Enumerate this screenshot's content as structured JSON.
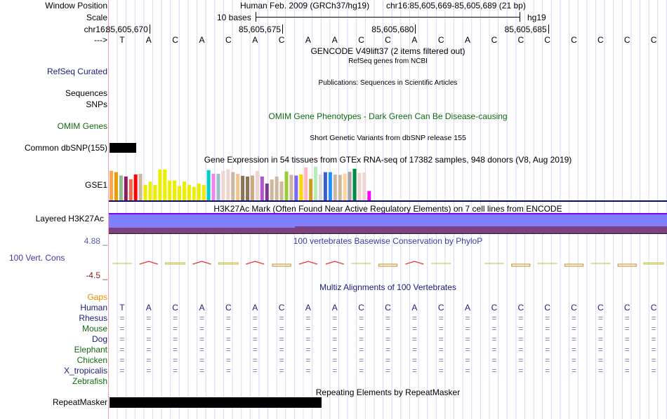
{
  "header": {
    "window_position_label": "Window Position",
    "assembly": "Human Feb. 2009 (GRCh37/hg19)",
    "position": "chr16:85,605,669-85,605,689 (21 bp)",
    "scale_label": "Scale",
    "scale_text": "10 bases",
    "scale_db": "hg19",
    "chrom_label": "chr16:",
    "coordinates": [
      "85,605,670",
      "85,605,675",
      "85,605,680",
      "85,605,685"
    ],
    "strand_label": "--->"
  },
  "sequence": [
    "T",
    "A",
    "C",
    "A",
    "C",
    "A",
    "C",
    "A",
    "A",
    "C",
    "C",
    "A",
    "C",
    "A",
    "C",
    "C",
    "C",
    "C",
    "C",
    "C",
    "C"
  ],
  "tracks": {
    "gencode": {
      "title": "GENCODE V49lift37 (2 items filtered out)"
    },
    "refseq": {
      "label": "RefSeq Curated",
      "title": "RefSeq genes from NCBI",
      "color": "#1c1c7c"
    },
    "publications": {
      "label": "Sequences",
      "title": "Publications: Sequences in Scientific Articles"
    },
    "snps_pub": {
      "label": "SNPs"
    },
    "omim": {
      "label": "OMIM Genes",
      "title": "OMIM Gene Phenotypes - Dark Green Can Be Disease-causing",
      "color": "#116a11"
    },
    "dbsnp": {
      "label": "Common dbSNP(155)",
      "title": "Short Genetic Variants from dbSNP release 155"
    },
    "gtex": {
      "label": "GSE1",
      "title": "Gene Expression in 54 tissues from GTEx RNA-seq of 17382 samples, 948 donors (V8, Aug 2019)",
      "bars": [
        {
          "color": "#ffa54f",
          "v": 0.88
        },
        {
          "color": "#ee9a00",
          "v": 0.84
        },
        {
          "color": "#8fbc8f",
          "v": 0.74
        },
        {
          "color": "#8b1c62",
          "v": 0.71
        },
        {
          "color": "#ee6a50",
          "v": 0.63
        },
        {
          "color": "#ff0000",
          "v": 0.77
        },
        {
          "color": "#cdb79e",
          "v": 0.79
        },
        {
          "color": "#eeee00",
          "v": 0.46
        },
        {
          "color": "#eeee00",
          "v": 0.56
        },
        {
          "color": "#eeee00",
          "v": 0.46
        },
        {
          "color": "#eeee00",
          "v": 0.92
        },
        {
          "color": "#eeee00",
          "v": 0.92
        },
        {
          "color": "#eeee00",
          "v": 0.59
        },
        {
          "color": "#eeee00",
          "v": 0.59
        },
        {
          "color": "#eeee00",
          "v": 0.43
        },
        {
          "color": "#eeee00",
          "v": 0.56
        },
        {
          "color": "#eeee00",
          "v": 0.46
        },
        {
          "color": "#eeee00",
          "v": 0.4
        },
        {
          "color": "#eeee00",
          "v": 0.5
        },
        {
          "color": "#eeee00",
          "v": 0.46
        },
        {
          "color": "#00cdcd",
          "v": 0.9
        },
        {
          "color": "#ee82ee",
          "v": 0.79
        },
        {
          "color": "#9ac0cd",
          "v": 0.79
        },
        {
          "color": "#eed5d2",
          "v": 0.87
        },
        {
          "color": "#eed5d2",
          "v": 0.92
        },
        {
          "color": "#cdb79e",
          "v": 0.84
        },
        {
          "color": "#eec591",
          "v": 0.79
        },
        {
          "color": "#8b7355",
          "v": 0.73
        },
        {
          "color": "#8b7355",
          "v": 0.71
        },
        {
          "color": "#cdaa7d",
          "v": 0.74
        },
        {
          "color": "#eed5d2",
          "v": 0.88
        },
        {
          "color": "#b452cd",
          "v": 0.71
        },
        {
          "color": "#7a378b",
          "v": 0.5
        },
        {
          "color": "#cdb79e",
          "v": 0.62
        },
        {
          "color": "#cdb79e",
          "v": 0.71
        },
        {
          "color": "#cdb79e",
          "v": 0.56
        },
        {
          "color": "#9acd32",
          "v": 0.86
        },
        {
          "color": "#cdb79e",
          "v": 0.76
        },
        {
          "color": "#7f68ee",
          "v": 0.74
        },
        {
          "color": "#ffd700",
          "v": 0.77
        },
        {
          "color": "#ffb6c1",
          "v": 0.98
        },
        {
          "color": "#cd9b1d",
          "v": 0.64
        },
        {
          "color": "#b4eeb4",
          "v": 1.0
        },
        {
          "color": "#d9d9d9",
          "v": 0.77
        },
        {
          "color": "#3a5fcd",
          "v": 0.84
        },
        {
          "color": "#1e90ff",
          "v": 0.84
        },
        {
          "color": "#cdb79e",
          "v": 0.77
        },
        {
          "color": "#cdb79e",
          "v": 0.76
        },
        {
          "color": "#ffd39b",
          "v": 0.8
        },
        {
          "color": "#a6a6a6",
          "v": 0.85
        },
        {
          "color": "#008b45",
          "v": 0.94
        },
        {
          "color": "#eed5d2",
          "v": 0.82
        },
        {
          "color": "#eed5d2",
          "v": 0.83
        },
        {
          "color": "#ff00ff",
          "v": 0.28
        }
      ]
    },
    "h3k27ac": {
      "label": "Layered H3K27Ac",
      "title": "H3K27Ac Mark (Often Found Near Active Regulatory Elements) on 7 cell lines from ENCODE"
    },
    "conservation": {
      "label": "100 Vert. Cons",
      "title": "100 vertebrates Basewise Conservation by PhyloP",
      "max_label": "4.88 _",
      "min_label": "-4.5 _"
    },
    "multiz": {
      "title": "Multiz Alignments of 100 Vertebrates",
      "gaps_label": "Gaps",
      "species": [
        {
          "name": "Human",
          "color": "#1c1c7c"
        },
        {
          "name": "Rhesus",
          "color": "#1c1c7c"
        },
        {
          "name": "Mouse",
          "color": "#116a11"
        },
        {
          "name": "Dog",
          "color": "#1c1c7c"
        },
        {
          "name": "Elephant",
          "color": "#116a11"
        },
        {
          "name": "Chicken",
          "color": "#116a11"
        },
        {
          "name": "X_tropicalis",
          "color": "#1c1c7c"
        },
        {
          "name": "Zebrafish",
          "color": "#116a11"
        }
      ],
      "match_symbol": "="
    },
    "repeatmasker": {
      "label": "RepeatMasker",
      "title": "Repeating Elements by RepeatMasker"
    }
  }
}
